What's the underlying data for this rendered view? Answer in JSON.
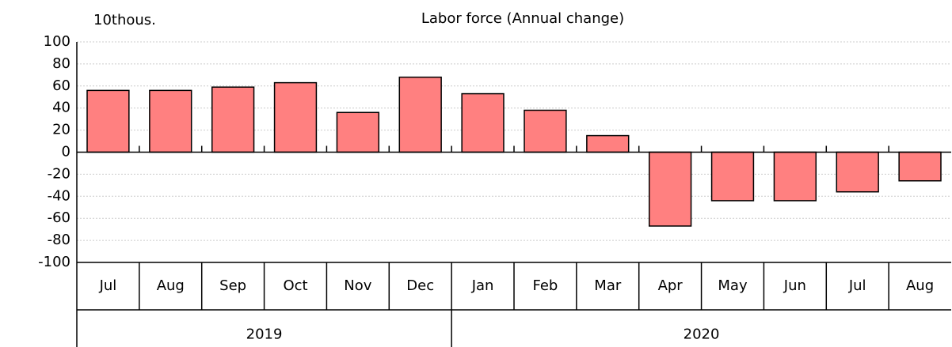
{
  "chart_data": {
    "type": "bar",
    "title": "Labor force (Annual change)",
    "unit_label": "10thous.",
    "categories": [
      "Jul",
      "Aug",
      "Sep",
      "Oct",
      "Nov",
      "Dec",
      "Jan",
      "Feb",
      "Mar",
      "Apr",
      "May",
      "Jun",
      "Jul",
      "Aug"
    ],
    "groups": [
      "2019",
      "2020"
    ],
    "values": [
      56,
      56,
      59,
      63,
      36,
      68,
      53,
      38,
      15,
      -67,
      -44,
      -44,
      -36,
      -26
    ],
    "color": "#ff8080",
    "ylim": [
      -100,
      100
    ],
    "yticks": [
      -100,
      -80,
      -60,
      -40,
      -20,
      0,
      20,
      40,
      60,
      80,
      100
    ],
    "grid": true
  }
}
